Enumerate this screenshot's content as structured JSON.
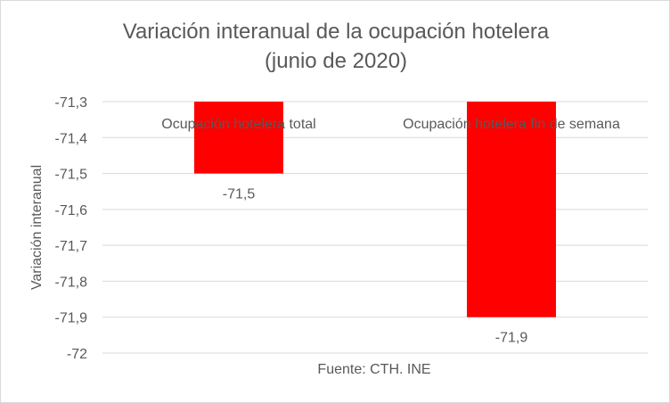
{
  "chart_data": {
    "type": "bar",
    "title_line1": "Variación interanual de la ocupación hotelera",
    "title_line2": "(junio de 2020)",
    "ylabel": "Variación interanual",
    "xlabel": "Fuente: CTH. INE",
    "categories": [
      "Ocupación hotelera total",
      "Ocupación hotelera fin de semana"
    ],
    "values": [
      -71.5,
      -71.9
    ],
    "value_labels": [
      "-71,5",
      "-71,9"
    ],
    "ylim": [
      -72,
      -71.3
    ],
    "yticks": [
      -71.3,
      -71.4,
      -71.5,
      -71.6,
      -71.7,
      -71.8,
      -71.9,
      -72
    ],
    "ytick_labels": [
      "-71,3",
      "-71,4",
      "-71,5",
      "-71,6",
      "-71,7",
      "-71,8",
      "-71,9",
      "-72"
    ],
    "bar_color": "#ff0000",
    "grid": true,
    "legend": "none"
  }
}
